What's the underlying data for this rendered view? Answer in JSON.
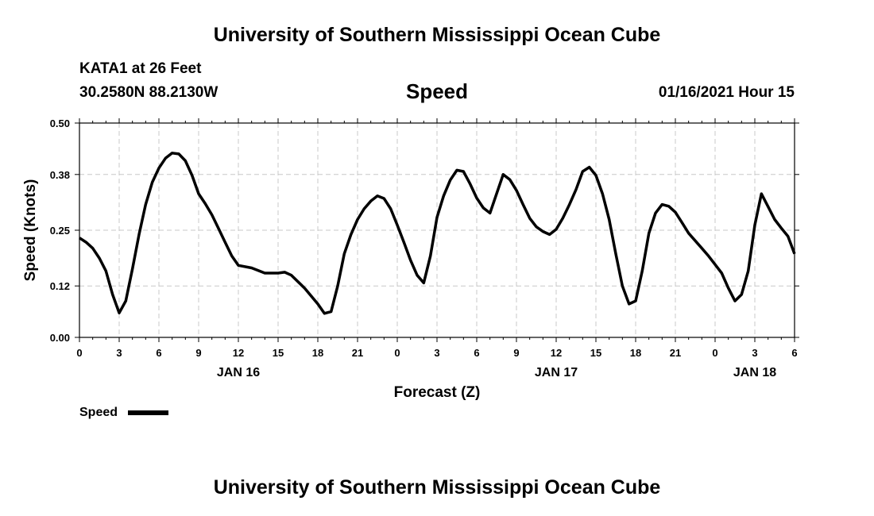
{
  "header": {
    "title": "University of Southern Mississippi Ocean Cube",
    "station": "KATA1 at 26 Feet",
    "coords": "30.2580N 88.2130W",
    "variable": "Speed",
    "datetime": "01/16/2021 Hour 15"
  },
  "footer": {
    "title": "University of Southern Mississippi Ocean Cube"
  },
  "chart_data": {
    "type": "line",
    "title": "Speed",
    "xlabel": "Forecast (Z)",
    "ylabel": "Speed (Knots)",
    "x_unit": "hours since 0Z JAN 16",
    "xlim": [
      0,
      54
    ],
    "ylim": [
      0.0,
      0.5
    ],
    "y_ticks": [
      "0.00",
      "0.12",
      "0.25",
      "0.38",
      "0.50"
    ],
    "x_tick_labels": [
      "0",
      "3",
      "6",
      "9",
      "12",
      "15",
      "18",
      "21",
      "0",
      "3",
      "6",
      "9",
      "12",
      "15",
      "18",
      "21",
      "0",
      "3",
      "6"
    ],
    "day_labels": [
      {
        "label": "JAN 16",
        "hour": 12
      },
      {
        "label": "JAN 17",
        "hour": 36
      },
      {
        "label": "JAN 18",
        "hour": 51
      }
    ],
    "grid": true,
    "legend": {
      "position": "bottom-left",
      "label": "Speed"
    },
    "line_color": "#000000",
    "series": [
      {
        "name": "Speed",
        "points": [
          [
            0,
            0.232
          ],
          [
            0.5,
            0.222
          ],
          [
            1,
            0.208
          ],
          [
            1.5,
            0.185
          ],
          [
            2,
            0.155
          ],
          [
            2.5,
            0.1
          ],
          [
            3,
            0.057
          ],
          [
            3.5,
            0.085
          ],
          [
            4,
            0.16
          ],
          [
            4.5,
            0.24
          ],
          [
            5,
            0.31
          ],
          [
            5.5,
            0.362
          ],
          [
            6,
            0.395
          ],
          [
            6.5,
            0.418
          ],
          [
            7,
            0.43
          ],
          [
            7.5,
            0.428
          ],
          [
            8,
            0.412
          ],
          [
            8.5,
            0.378
          ],
          [
            9,
            0.335
          ],
          [
            9.5,
            0.312
          ],
          [
            10,
            0.286
          ],
          [
            10.5,
            0.254
          ],
          [
            11,
            0.222
          ],
          [
            11.5,
            0.19
          ],
          [
            12,
            0.168
          ],
          [
            13,
            0.162
          ],
          [
            14,
            0.15
          ],
          [
            15,
            0.15
          ],
          [
            15.5,
            0.152
          ],
          [
            16,
            0.145
          ],
          [
            17,
            0.115
          ],
          [
            18,
            0.078
          ],
          [
            18.5,
            0.056
          ],
          [
            19,
            0.06
          ],
          [
            19.5,
            0.12
          ],
          [
            20,
            0.195
          ],
          [
            20.5,
            0.24
          ],
          [
            21,
            0.275
          ],
          [
            21.5,
            0.3
          ],
          [
            22,
            0.318
          ],
          [
            22.5,
            0.33
          ],
          [
            23,
            0.324
          ],
          [
            23.5,
            0.3
          ],
          [
            24,
            0.262
          ],
          [
            24.5,
            0.222
          ],
          [
            25,
            0.18
          ],
          [
            25.5,
            0.145
          ],
          [
            26,
            0.127
          ],
          [
            26.5,
            0.19
          ],
          [
            27,
            0.28
          ],
          [
            27.5,
            0.33
          ],
          [
            28,
            0.367
          ],
          [
            28.5,
            0.39
          ],
          [
            29,
            0.387
          ],
          [
            29.5,
            0.358
          ],
          [
            30,
            0.325
          ],
          [
            30.5,
            0.302
          ],
          [
            31,
            0.29
          ],
          [
            31.5,
            0.335
          ],
          [
            32,
            0.38
          ],
          [
            32.5,
            0.368
          ],
          [
            33,
            0.343
          ],
          [
            33.5,
            0.31
          ],
          [
            34,
            0.278
          ],
          [
            34.5,
            0.258
          ],
          [
            35,
            0.247
          ],
          [
            35.5,
            0.24
          ],
          [
            36,
            0.252
          ],
          [
            36.5,
            0.278
          ],
          [
            37,
            0.31
          ],
          [
            37.5,
            0.345
          ],
          [
            38,
            0.387
          ],
          [
            38.5,
            0.397
          ],
          [
            39,
            0.378
          ],
          [
            39.5,
            0.335
          ],
          [
            40,
            0.275
          ],
          [
            40.5,
            0.195
          ],
          [
            41,
            0.12
          ],
          [
            41.5,
            0.078
          ],
          [
            42,
            0.085
          ],
          [
            42.5,
            0.155
          ],
          [
            43,
            0.243
          ],
          [
            43.5,
            0.29
          ],
          [
            44,
            0.31
          ],
          [
            44.5,
            0.306
          ],
          [
            45,
            0.292
          ],
          [
            45.5,
            0.268
          ],
          [
            46,
            0.243
          ],
          [
            47,
            0.208
          ],
          [
            47.5,
            0.19
          ],
          [
            48,
            0.17
          ],
          [
            48.5,
            0.15
          ],
          [
            49,
            0.115
          ],
          [
            49.5,
            0.085
          ],
          [
            50,
            0.1
          ],
          [
            50.5,
            0.155
          ],
          [
            51,
            0.262
          ],
          [
            51.5,
            0.335
          ],
          [
            52,
            0.305
          ],
          [
            52.5,
            0.275
          ],
          [
            53,
            0.255
          ],
          [
            53.5,
            0.236
          ],
          [
            54,
            0.195
          ]
        ]
      }
    ]
  }
}
